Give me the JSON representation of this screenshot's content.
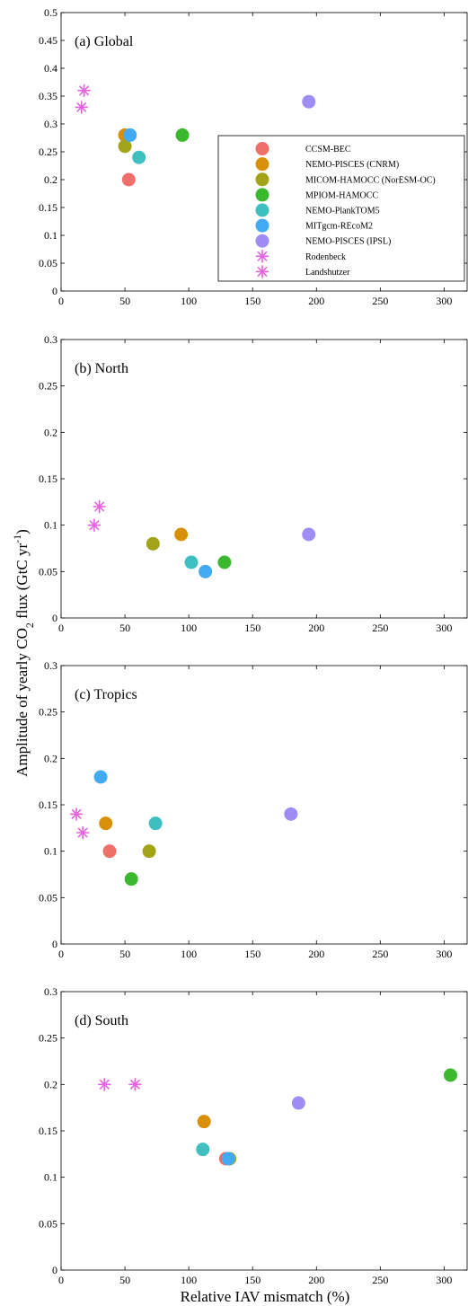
{
  "chart_data": {
    "type": "scatter",
    "xlabel": "Relative IAV mismatch (%)",
    "ylabel_parts": {
      "main": "Amplitude of yearly CO",
      "sub": "2",
      "mid": " flux (GtC yr",
      "sup": "-1",
      "end": ")"
    },
    "x_ticks": [
      0,
      50,
      100,
      150,
      200,
      250,
      300
    ],
    "xlim": [
      0,
      318
    ],
    "legend_placement": "right",
    "series": [
      {
        "name": "CCSM-BEC",
        "marker": "circle",
        "color": "#ef6f6a"
      },
      {
        "name": "NEMO-PISCES (CNRM)",
        "marker": "circle",
        "color": "#d8900a"
      },
      {
        "name": "MICOM-HAMOCC (NorESM-OC)",
        "marker": "circle",
        "color": "#a3a31a"
      },
      {
        "name": "MPIOM-HAMOCC",
        "marker": "circle",
        "color": "#3bb82d"
      },
      {
        "name": "NEMO-PlankTOM5",
        "marker": "circle",
        "color": "#3fbfbf"
      },
      {
        "name": "MITgcm-REcoM2",
        "marker": "circle",
        "color": "#42aaf2"
      },
      {
        "name": "NEMO-PISCES (IPSL)",
        "marker": "circle",
        "color": "#a08cf5"
      },
      {
        "name": "Rodenbeck",
        "marker": "asterisk",
        "color": "#e563e0"
      },
      {
        "name": "Landshutzer",
        "marker": "asterisk",
        "color": "#e563e0"
      }
    ],
    "panels": [
      {
        "title": "(a)  Global",
        "ylim": [
          0,
          0.5
        ],
        "y_ticks": [
          "0",
          "0.05",
          "0.1",
          "0.15",
          "0.2",
          "0.25",
          "0.3",
          "0.35",
          "0.4",
          "0.45",
          "0.5"
        ],
        "points": [
          {
            "series": 0,
            "x": 53,
            "y": 0.2
          },
          {
            "series": 1,
            "x": 50,
            "y": 0.28
          },
          {
            "series": 2,
            "x": 50,
            "y": 0.26
          },
          {
            "series": 3,
            "x": 95,
            "y": 0.28
          },
          {
            "series": 4,
            "x": 61,
            "y": 0.24
          },
          {
            "series": 5,
            "x": 54,
            "y": 0.28
          },
          {
            "series": 6,
            "x": 194,
            "y": 0.34
          },
          {
            "series": 7,
            "x": 18,
            "y": 0.36
          },
          {
            "series": 8,
            "x": 16,
            "y": 0.33
          }
        ]
      },
      {
        "title": "(b)  North",
        "ylim": [
          0,
          0.3
        ],
        "y_ticks": [
          "0",
          "0.05",
          "0.1",
          "0.15",
          "0.2",
          "0.25",
          "0.3"
        ],
        "points": [
          {
            "series": 1,
            "x": 94,
            "y": 0.09
          },
          {
            "series": 2,
            "x": 72,
            "y": 0.08
          },
          {
            "series": 3,
            "x": 128,
            "y": 0.06
          },
          {
            "series": 4,
            "x": 102,
            "y": 0.06
          },
          {
            "series": 5,
            "x": 113,
            "y": 0.05
          },
          {
            "series": 6,
            "x": 194,
            "y": 0.09
          },
          {
            "series": 7,
            "x": 30,
            "y": 0.12
          },
          {
            "series": 8,
            "x": 26,
            "y": 0.1
          }
        ]
      },
      {
        "title": "(c)  Tropics",
        "ylim": [
          0,
          0.3
        ],
        "y_ticks": [
          "0",
          "0.05",
          "0.1",
          "0.15",
          "0.2",
          "0.25",
          "0.3"
        ],
        "points": [
          {
            "series": 0,
            "x": 38,
            "y": 0.1
          },
          {
            "series": 1,
            "x": 35,
            "y": 0.13
          },
          {
            "series": 2,
            "x": 69,
            "y": 0.1
          },
          {
            "series": 3,
            "x": 55,
            "y": 0.07
          },
          {
            "series": 4,
            "x": 74,
            "y": 0.13
          },
          {
            "series": 5,
            "x": 31,
            "y": 0.18
          },
          {
            "series": 6,
            "x": 180,
            "y": 0.14
          },
          {
            "series": 7,
            "x": 12,
            "y": 0.14
          },
          {
            "series": 8,
            "x": 17,
            "y": 0.12
          }
        ]
      },
      {
        "title": "(d)  South",
        "ylim": [
          0,
          0.3
        ],
        "y_ticks": [
          "0",
          "0.05",
          "0.1",
          "0.15",
          "0.2",
          "0.25",
          "0.3"
        ],
        "points": [
          {
            "series": 0,
            "x": 129,
            "y": 0.12
          },
          {
            "series": 1,
            "x": 112,
            "y": 0.16
          },
          {
            "series": 2,
            "x": 132,
            "y": 0.12
          },
          {
            "series": 3,
            "x": 305,
            "y": 0.21
          },
          {
            "series": 4,
            "x": 111,
            "y": 0.13
          },
          {
            "series": 5,
            "x": 131,
            "y": 0.12
          },
          {
            "series": 6,
            "x": 186,
            "y": 0.18
          },
          {
            "series": 7,
            "x": 34,
            "y": 0.2
          },
          {
            "series": 8,
            "x": 58,
            "y": 0.2
          }
        ]
      }
    ]
  }
}
